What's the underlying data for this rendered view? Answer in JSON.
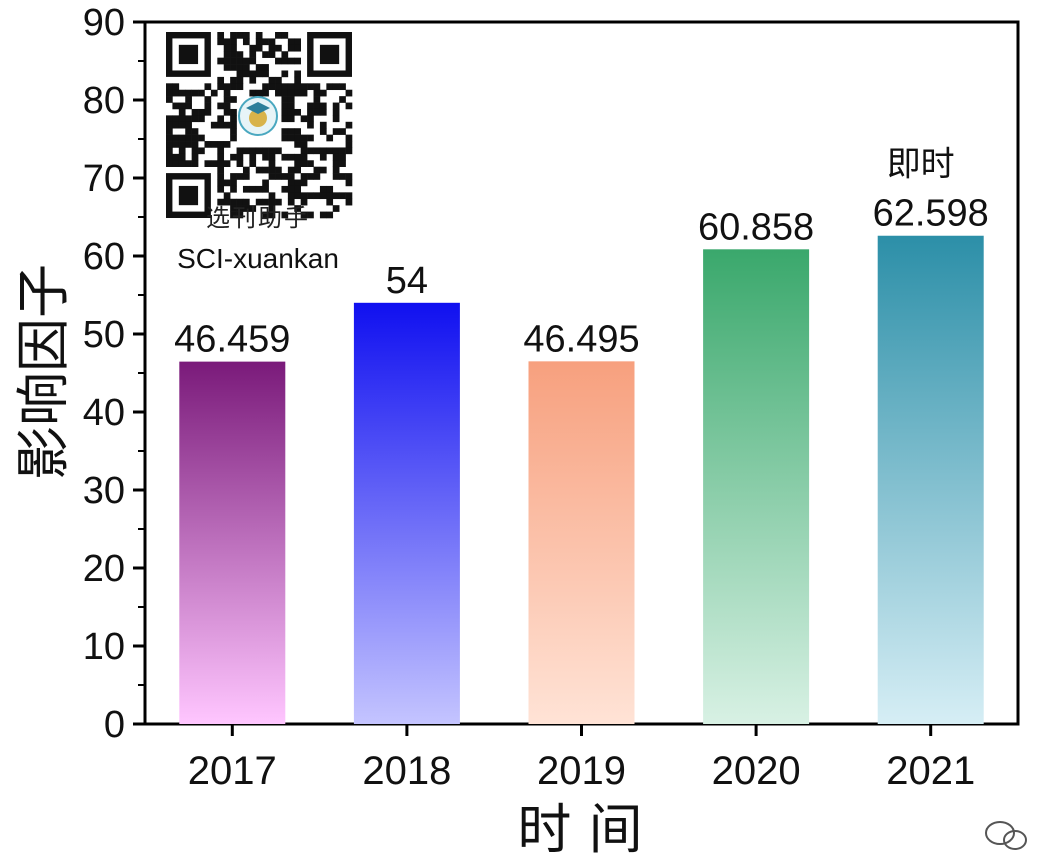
{
  "chart_data": {
    "type": "bar",
    "categories": [
      "2017",
      "2018",
      "2019",
      "2020",
      "2021"
    ],
    "values": [
      46.459,
      54,
      46.495,
      60.858,
      62.598
    ],
    "data_labels": [
      "46.459",
      "54",
      "46.495",
      "60.858",
      "62.598"
    ],
    "annotations": [
      {
        "category": "2021",
        "text": "即时"
      }
    ],
    "xlabel": "时 间",
    "ylabel": "影响因子",
    "ylim": [
      0,
      90
    ],
    "yticks": [
      "0",
      "10",
      "20",
      "30",
      "40",
      "50",
      "60",
      "70",
      "80",
      "90"
    ],
    "grid": false,
    "bar_colors": [
      {
        "top": "#7a1a7a",
        "bottom": "#ffc6ff"
      },
      {
        "top": "#1010f0",
        "bottom": "#c4c4ff"
      },
      {
        "top": "#f7a07e",
        "bottom": "#ffe3d6"
      },
      {
        "top": "#3aa86c",
        "bottom": "#d8f1e4"
      },
      {
        "top": "#2c8fa8",
        "bottom": "#d6eef5"
      }
    ]
  },
  "watermark": {
    "label_cn": "选刊助手",
    "label_en": "SCI-xuankan"
  }
}
